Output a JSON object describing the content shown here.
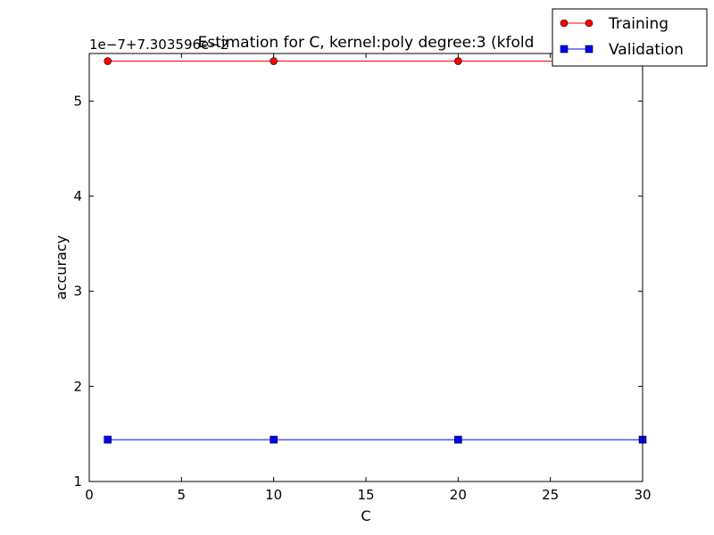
{
  "chart_data": {
    "type": "line",
    "title": "Estimation for C, kernel:poly degree:3 (kfold",
    "offset_label": "1e−7+7.303596e−2",
    "xlabel": "C",
    "ylabel": "accuracy",
    "xlim": [
      0,
      30
    ],
    "ylim": [
      1,
      5.5
    ],
    "xticks": [
      0,
      5,
      10,
      15,
      20,
      25,
      30
    ],
    "yticks": [
      1,
      2,
      3,
      4,
      5
    ],
    "grid": false,
    "legend_position": "top-right",
    "x": [
      1,
      10,
      20,
      30
    ],
    "series": [
      {
        "name": "Training",
        "values": [
          5.42,
          5.42,
          5.42,
          5.42
        ],
        "color": "#ff0000",
        "marker": "circle"
      },
      {
        "name": "Validation",
        "values": [
          1.44,
          1.44,
          1.44,
          1.44
        ],
        "color": "#0000ff",
        "marker": "square"
      }
    ]
  }
}
